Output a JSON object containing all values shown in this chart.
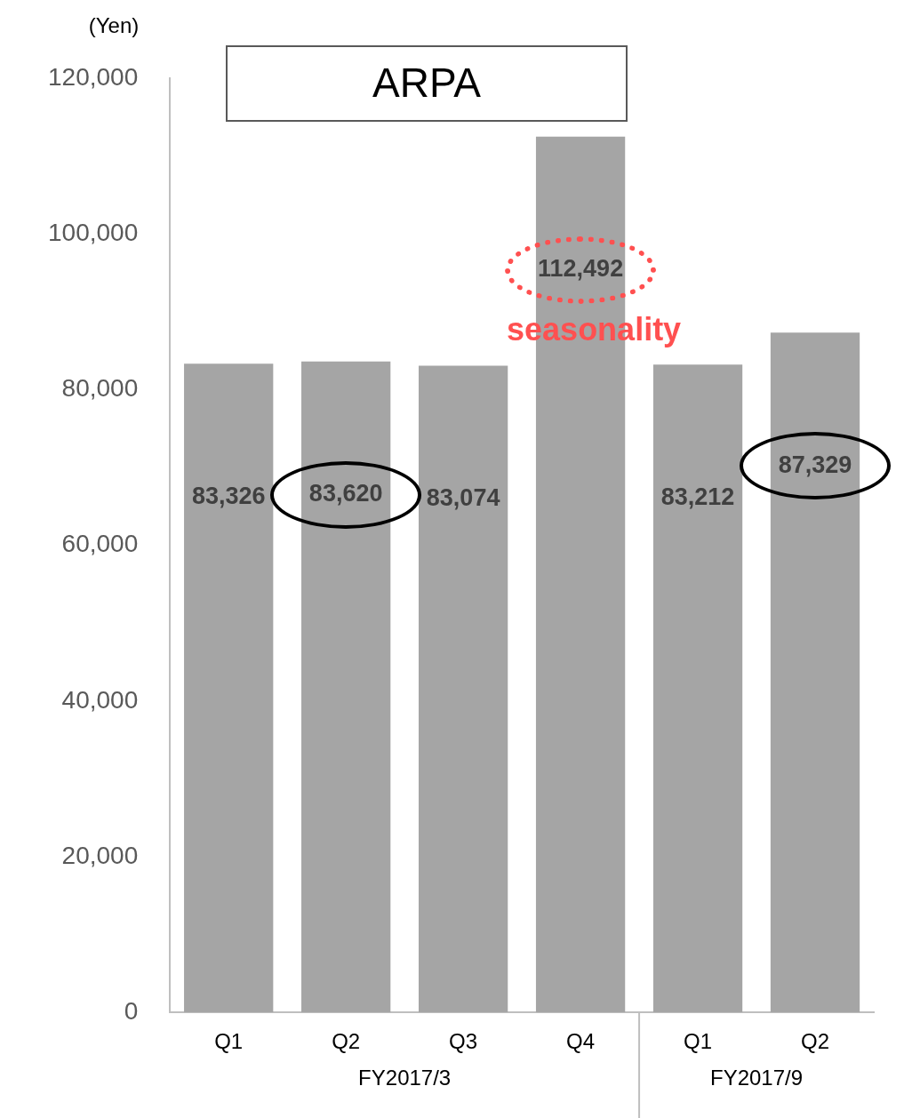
{
  "chart_data": {
    "type": "bar",
    "title": "ARPA",
    "ylabel": "(Yen)",
    "categories": [
      "Q1",
      "Q2",
      "Q3",
      "Q4",
      "Q1",
      "Q2"
    ],
    "values": [
      83326,
      83620,
      83074,
      112492,
      83212,
      87329
    ],
    "value_labels": [
      "83,326",
      "83,620",
      "83,074",
      "112,492",
      "83,212",
      "87,329"
    ],
    "color": "#a5a5a5",
    "ylim": [
      0,
      120000
    ],
    "yticks": [
      0,
      {
        "value": 20000,
        "label": "20,000"
      },
      {
        "value": 40000,
        "label": "40,000"
      },
      {
        "value": 60000,
        "label": "60,000"
      },
      {
        "value": 80000,
        "label": "80,000"
      },
      {
        "value": 100000,
        "label": "100,000"
      },
      {
        "value": 120000,
        "label": "120,000"
      }
    ],
    "grid": false,
    "legend": false,
    "annotations": [
      "FY2017/3",
      "FY2017/9",
      "seasonality"
    ]
  }
}
